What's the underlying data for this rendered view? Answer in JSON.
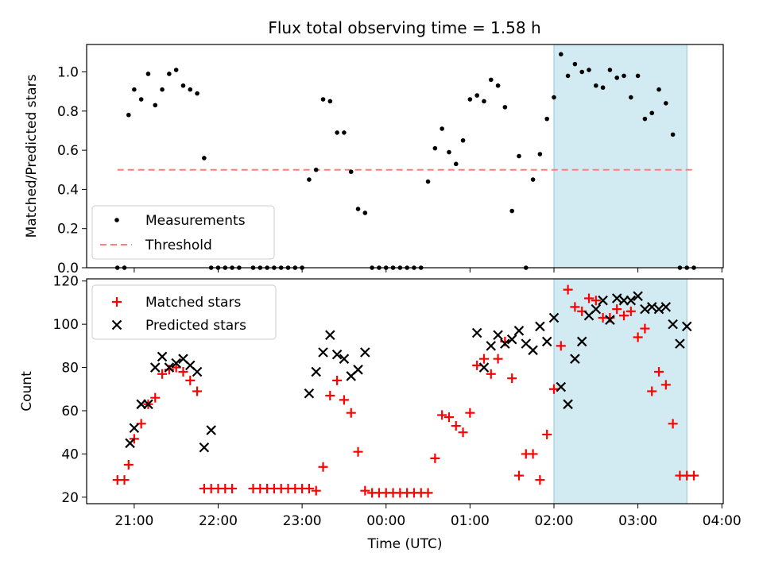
{
  "title": "Flux total observing time = 1.58 h",
  "chart_data": [
    {
      "type": "scatter",
      "panel": "top",
      "ylabel": "Matched/Predicted stars",
      "xlabel": "",
      "ylim": [
        0,
        1.14
      ],
      "yticks": [
        0.0,
        0.2,
        0.4,
        0.6,
        0.8,
        1.0
      ],
      "ytick_labels": [
        "0.0",
        "0.2",
        "0.4",
        "0.6",
        "0.8",
        "1.0"
      ],
      "legend": {
        "placement": "lower-left",
        "entries": [
          "Measurements",
          "Threshold"
        ]
      },
      "threshold": {
        "name": "Threshold",
        "value": 0.5,
        "x_start": "20:48",
        "x_end": "03:40",
        "color": "#ff7f7f"
      },
      "series": [
        {
          "name": "Measurements",
          "marker": "dot",
          "color": "#000000",
          "x": [
            "20:48",
            "20:53",
            "20:56",
            "21:00",
            "21:05",
            "21:10",
            "21:15",
            "21:20",
            "21:25",
            "21:30",
            "21:35",
            "21:40",
            "21:45",
            "21:50",
            "21:55",
            "22:00",
            "22:05",
            "22:10",
            "22:15",
            "22:25",
            "22:30",
            "22:35",
            "22:40",
            "22:45",
            "22:50",
            "22:55",
            "23:00",
            "23:05",
            "23:10",
            "23:15",
            "23:20",
            "23:25",
            "23:30",
            "23:35",
            "23:40",
            "23:45",
            "23:50",
            "23:55",
            "00:00",
            "00:05",
            "00:10",
            "00:15",
            "00:20",
            "00:25",
            "00:30",
            "00:35",
            "00:40",
            "00:45",
            "00:50",
            "00:55",
            "01:00",
            "01:05",
            "01:10",
            "01:15",
            "01:20",
            "01:25",
            "01:30",
            "01:35",
            "01:40",
            "01:45",
            "01:50",
            "01:55",
            "02:00",
            "02:05",
            "02:10",
            "02:15",
            "02:20",
            "02:25",
            "02:30",
            "02:35",
            "02:40",
            "02:45",
            "02:50",
            "02:55",
            "03:00",
            "03:05",
            "03:10",
            "03:15",
            "03:20",
            "03:25",
            "03:30",
            "03:35",
            "03:40"
          ],
          "y": [
            0.0,
            0.0,
            0.78,
            0.91,
            0.86,
            0.99,
            0.83,
            0.91,
            0.99,
            1.01,
            0.93,
            0.91,
            0.89,
            0.56,
            0.0,
            0.0,
            0.0,
            0.0,
            0.0,
            0.0,
            0.0,
            0.0,
            0.0,
            0.0,
            0.0,
            0.0,
            0.0,
            0.45,
            0.5,
            0.86,
            0.85,
            0.69,
            0.69,
            0.49,
            0.3,
            0.28,
            0.0,
            0.0,
            0.0,
            0.0,
            0.0,
            0.0,
            0.0,
            0.0,
            0.44,
            0.61,
            0.71,
            0.59,
            0.53,
            0.65,
            0.86,
            0.88,
            0.85,
            0.96,
            0.93,
            0.82,
            0.29,
            0.57,
            0.0,
            0.45,
            0.58,
            0.76,
            0.87,
            1.09,
            0.98,
            1.04,
            1.0,
            1.01,
            0.93,
            0.92,
            1.01,
            0.97,
            0.98,
            0.87,
            0.98,
            0.76,
            0.79,
            0.91,
            0.84,
            0.68,
            0.0,
            0.0,
            0.0
          ]
        }
      ],
      "highlight": {
        "x_start": "02:00",
        "x_end": "03:35",
        "color": "#add8e6"
      }
    },
    {
      "type": "scatter",
      "panel": "bottom",
      "ylabel": "Count",
      "xlabel": "Time (UTC)",
      "ylim": [
        17,
        121
      ],
      "yticks": [
        20,
        40,
        60,
        80,
        100,
        120
      ],
      "ytick_labels": [
        "20",
        "40",
        "60",
        "80",
        "100",
        "120"
      ],
      "xticks": [
        "21:00",
        "22:00",
        "23:00",
        "00:00",
        "01:00",
        "02:00",
        "03:00",
        "04:00"
      ],
      "xlim": [
        "20:26",
        "04:01"
      ],
      "legend": {
        "placement": "upper-left",
        "entries": [
          "Matched stars",
          "Predicted stars"
        ]
      },
      "series": [
        {
          "name": "Matched stars",
          "marker": "plus",
          "color": "#ff0000",
          "x": [
            "20:48",
            "20:53",
            "20:56",
            "21:00",
            "21:05",
            "21:10",
            "21:15",
            "21:20",
            "21:25",
            "21:30",
            "21:35",
            "21:40",
            "21:45",
            "21:50",
            "21:55",
            "22:00",
            "22:05",
            "22:10",
            "22:25",
            "22:30",
            "22:35",
            "22:40",
            "22:45",
            "22:50",
            "22:55",
            "23:00",
            "23:05",
            "23:10",
            "23:15",
            "23:20",
            "23:25",
            "23:30",
            "23:35",
            "23:40",
            "23:45",
            "23:50",
            "23:55",
            "00:00",
            "00:05",
            "00:10",
            "00:15",
            "00:20",
            "00:25",
            "00:30",
            "00:35",
            "00:40",
            "00:45",
            "00:50",
            "00:55",
            "01:00",
            "01:05",
            "01:10",
            "01:15",
            "01:20",
            "01:25",
            "01:30",
            "01:35",
            "01:40",
            "01:45",
            "01:50",
            "01:55",
            "02:00",
            "02:05",
            "02:10",
            "02:15",
            "02:20",
            "02:25",
            "02:30",
            "02:35",
            "02:40",
            "02:45",
            "02:50",
            "02:55",
            "03:00",
            "03:05",
            "03:10",
            "03:15",
            "03:20",
            "03:25",
            "03:30",
            "03:35",
            "03:40"
          ],
          "y": [
            28,
            28,
            35,
            47,
            54,
            63,
            66,
            77,
            79,
            80,
            78,
            74,
            69,
            24,
            24,
            24,
            24,
            24,
            24,
            24,
            24,
            24,
            24,
            24,
            24,
            24,
            24,
            23,
            34,
            67,
            74,
            65,
            59,
            41,
            23,
            22,
            22,
            22,
            22,
            22,
            22,
            22,
            22,
            22,
            38,
            58,
            57,
            53,
            50,
            59,
            81,
            84,
            77,
            84,
            92,
            75,
            30,
            40,
            40,
            28,
            49,
            70,
            90,
            116,
            108,
            106,
            112,
            111,
            103,
            103,
            107,
            104,
            106,
            94,
            98,
            69,
            78,
            72,
            54,
            30,
            30,
            30
          ]
        },
        {
          "name": "Predicted stars",
          "marker": "x",
          "color": "#000000",
          "x": [
            "20:57",
            "21:00",
            "21:05",
            "21:10",
            "21:15",
            "21:20",
            "21:25",
            "21:30",
            "21:35",
            "21:40",
            "21:45",
            "21:50",
            "21:55",
            "23:05",
            "23:10",
            "23:15",
            "23:20",
            "23:25",
            "23:30",
            "23:35",
            "23:40",
            "23:45",
            "01:05",
            "01:10",
            "01:15",
            "01:20",
            "01:25",
            "01:30",
            "01:35",
            "01:40",
            "01:45",
            "01:50",
            "01:55",
            "02:00",
            "02:05",
            "02:10",
            "02:15",
            "02:20",
            "02:25",
            "02:30",
            "02:35",
            "02:40",
            "02:45",
            "02:50",
            "02:55",
            "03:00",
            "03:05",
            "03:10",
            "03:15",
            "03:20",
            "03:25",
            "03:30",
            "03:35"
          ],
          "y": [
            45,
            52,
            63,
            63,
            80,
            85,
            80,
            82,
            84,
            81,
            78,
            43,
            51,
            68,
            78,
            87,
            95,
            86,
            84,
            76,
            79,
            87,
            96,
            80,
            90,
            95,
            91,
            93,
            97,
            91,
            88,
            99,
            92,
            103,
            71,
            63,
            84,
            92,
            104,
            107,
            111,
            102,
            112,
            111,
            111,
            113,
            107,
            108,
            107,
            108,
            100,
            91,
            99
          ]
        }
      ],
      "highlight": {
        "x_start": "02:00",
        "x_end": "03:35",
        "color": "#add8e6"
      }
    }
  ]
}
